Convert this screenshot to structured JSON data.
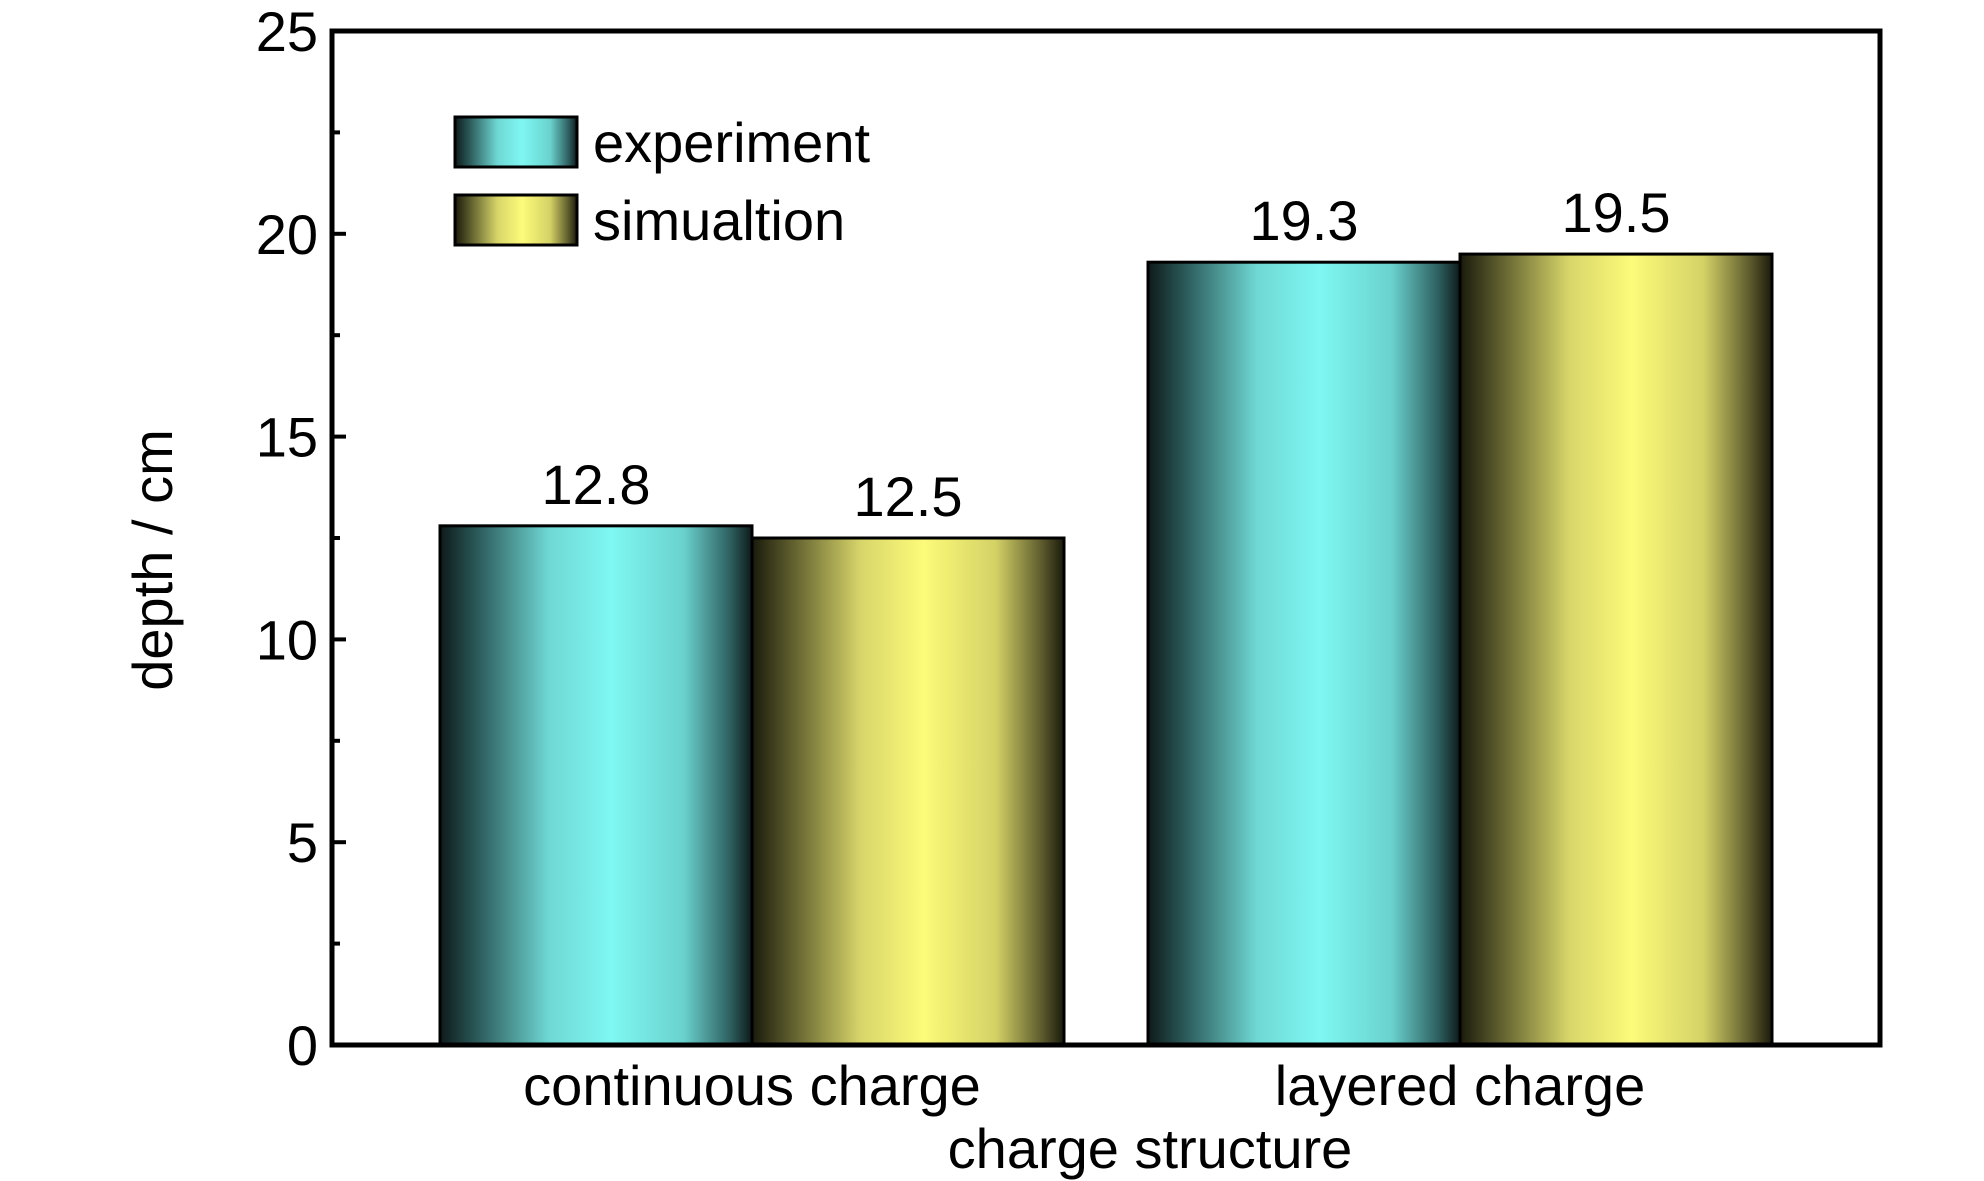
{
  "chart_data": {
    "type": "bar",
    "title": "",
    "xlabel": "charge structure",
    "ylabel": "depth / cm",
    "ylim": [
      0,
      25
    ],
    "yticks": [
      0,
      5,
      10,
      15,
      20,
      25
    ],
    "categories": [
      "continuous charge",
      "layered charge"
    ],
    "series": [
      {
        "name": "experiment",
        "values": [
          12.8,
          19.3
        ],
        "labels": [
          "12.8",
          "19.3"
        ]
      },
      {
        "name": "simualtion",
        "values": [
          12.5,
          19.5
        ],
        "labels": [
          "12.5",
          "19.5"
        ]
      }
    ],
    "grid": false,
    "legend_position": "top-left",
    "colors": {
      "experiment": "#7ff7f2",
      "simualtion": "#fdfb79"
    }
  }
}
